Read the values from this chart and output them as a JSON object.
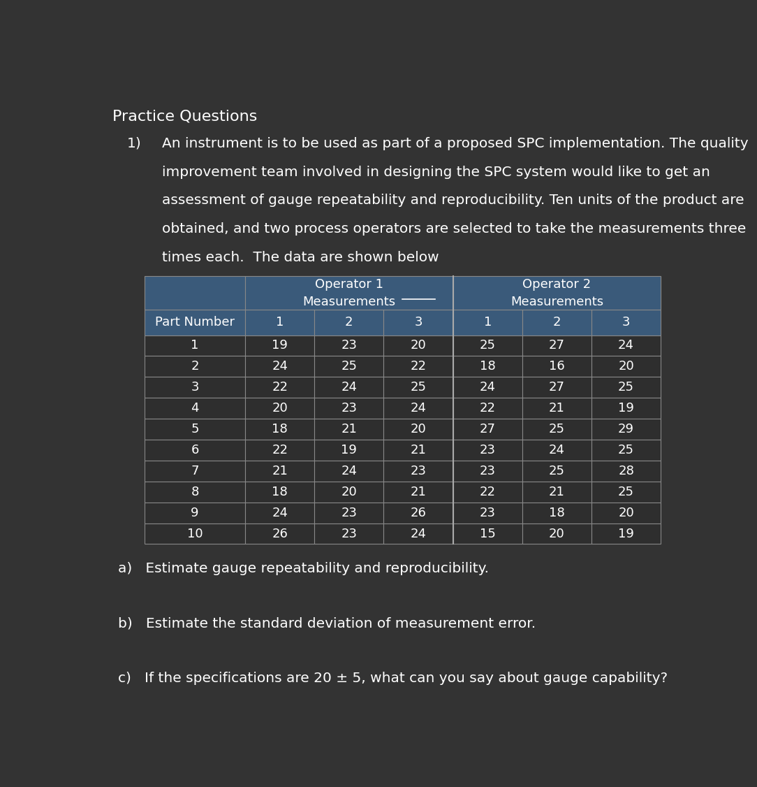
{
  "bg_color": "#333333",
  "text_color": "#ffffff",
  "header_bg": "#3a5a7a",
  "cell_bg_dark": "#2e2e2e",
  "title": "Practice Questions",
  "question_number": "1)",
  "question_lines": [
    "An instrument is to be used as part of a proposed SPC implementation. The quality",
    "improvement team involved in designing the SPC system would like to get an",
    "assessment of gauge repeatability and reproducibility. Ten units of the product are",
    "obtained, and two process operators are selected to take the measurements three",
    "times each.  The data are shown below"
  ],
  "underline_word": "below",
  "sub_headers": [
    "Part Number",
    "1",
    "2",
    "3",
    "1",
    "2",
    "3"
  ],
  "table_data": [
    [
      1,
      19,
      23,
      20,
      25,
      27,
      24
    ],
    [
      2,
      24,
      25,
      22,
      18,
      16,
      20
    ],
    [
      3,
      22,
      24,
      25,
      24,
      27,
      25
    ],
    [
      4,
      20,
      23,
      24,
      22,
      21,
      19
    ],
    [
      5,
      18,
      21,
      20,
      27,
      25,
      29
    ],
    [
      6,
      22,
      19,
      21,
      23,
      24,
      25
    ],
    [
      7,
      21,
      24,
      23,
      23,
      25,
      28
    ],
    [
      8,
      18,
      20,
      21,
      22,
      21,
      25
    ],
    [
      9,
      24,
      23,
      26,
      23,
      18,
      20
    ],
    [
      10,
      26,
      23,
      24,
      15,
      20,
      19
    ]
  ],
  "part_a": "a)   Estimate gauge repeatability and reproducibility.",
  "part_b": "b)   Estimate the standard deviation of measurement error.",
  "part_c_line1": "c)   If the specifications are 20 ± 5, what can you say about gauge capability?"
}
